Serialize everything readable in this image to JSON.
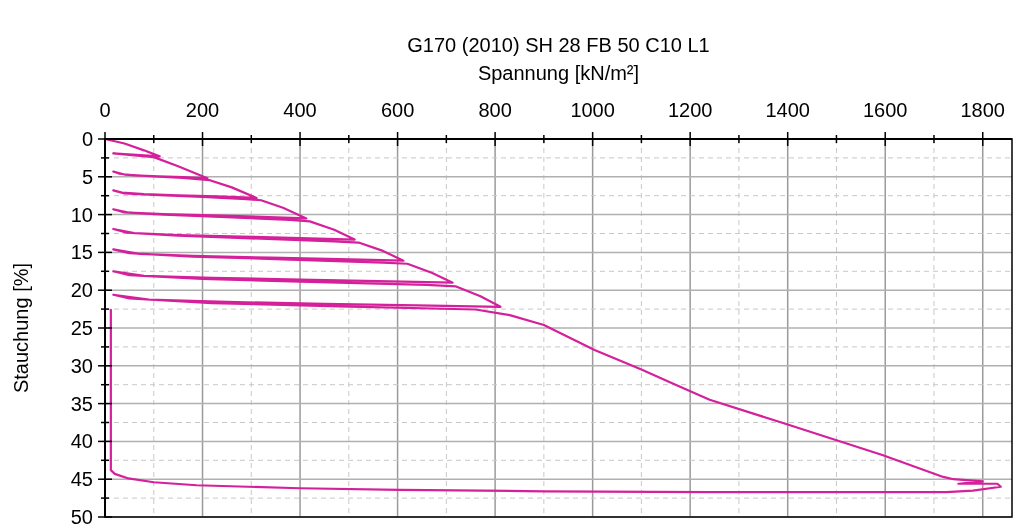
{
  "chart_data": {
    "type": "line",
    "title": "G170 (2010) SH 28 FB 50 C10 L1",
    "xlabel": "Spannung [kN/m²]",
    "ylabel": "Stauchung [%]",
    "xlim": [
      0,
      1860
    ],
    "ylim": [
      50,
      0
    ],
    "xticks": [
      0,
      {
        "value": 100,
        "label": null
      },
      200,
      {
        "value": 300,
        "label": null
      },
      400,
      {
        "value": 500,
        "label": null
      },
      600,
      {
        "value": 700,
        "label": null
      },
      800,
      {
        "value": 900,
        "label": null
      },
      1000,
      {
        "value": 1100,
        "label": null
      },
      1200,
      {
        "value": 1300,
        "label": null
      },
      1400,
      {
        "value": 1500,
        "label": null
      },
      1600,
      {
        "value": 1700,
        "label": null
      },
      1800
    ],
    "yticks": [
      0,
      {
        "value": 2.5,
        "label": null
      },
      5,
      {
        "value": 7.5,
        "label": null
      },
      10,
      {
        "value": 12.5,
        "label": null
      },
      15,
      {
        "value": 17.5,
        "label": null
      },
      20,
      {
        "value": 22.5,
        "label": null
      },
      25,
      {
        "value": 27.5,
        "label": null
      },
      30,
      {
        "value": 32.5,
        "label": null
      },
      35,
      {
        "value": 37.5,
        "label": null
      },
      40,
      {
        "value": 42.5,
        "label": null
      },
      45,
      {
        "value": 47.5,
        "label": null
      },
      50
    ],
    "grid": true,
    "line_style": "solid",
    "marker": "none",
    "series": [
      {
        "color": "#d4209a",
        "x": [
          0,
          40,
          80,
          112,
          80,
          40,
          17,
          50,
          100,
          150,
          210,
          160,
          110,
          60,
          30,
          17,
          40,
          100,
          160,
          215,
          260,
          311,
          230,
          150,
          80,
          35,
          17,
          40,
          100,
          200,
          290,
          320,
          365,
          413,
          320,
          220,
          120,
          50,
          17,
          40,
          120,
          250,
          380,
          420,
          470,
          512,
          400,
          280,
          150,
          60,
          17,
          45,
          150,
          300,
          470,
          520,
          570,
          612,
          480,
          340,
          180,
          70,
          17,
          50,
          180,
          380,
          570,
          620,
          670,
          713,
          560,
          400,
          220,
          80,
          17,
          50,
          200,
          420,
          660,
          720,
          770,
          811,
          640,
          450,
          250,
          90,
          17,
          50,
          220,
          480,
          760,
          830,
          900,
          1004,
          1100,
          1170,
          1240,
          1392,
          1594,
          1719,
          1740,
          1800,
          1750,
          1830,
          1837,
          1780,
          1725,
          1240,
          900,
          604,
          400,
          188,
          100,
          48,
          20,
          12,
          12,
          12
        ],
        "values": [
          0,
          0.6,
          1.5,
          2.3,
          2.15,
          2.0,
          1.9,
          2.1,
          2.4,
          3.6,
          5.2,
          5.05,
          4.95,
          4.8,
          4.6,
          4.3,
          4.7,
          4.95,
          5.15,
          5.45,
          6.4,
          7.8,
          7.6,
          7.45,
          7.3,
          7.1,
          6.8,
          7.2,
          7.4,
          7.65,
          7.95,
          8.1,
          9.1,
          10.5,
          10.3,
          10.1,
          9.95,
          9.75,
          9.3,
          9.7,
          10.0,
          10.35,
          10.7,
          10.9,
          12.0,
          13.3,
          13.1,
          12.9,
          12.7,
          12.45,
          11.9,
          12.4,
          12.8,
          13.15,
          13.55,
          13.7,
          14.8,
          16.1,
          15.9,
          15.7,
          15.45,
          15.2,
          14.6,
          15.1,
          15.55,
          15.95,
          16.35,
          16.5,
          17.7,
          19.0,
          18.8,
          18.6,
          18.35,
          18.1,
          17.5,
          18.0,
          18.5,
          18.9,
          19.3,
          19.5,
          20.8,
          22.2,
          22.0,
          21.8,
          21.55,
          21.25,
          20.6,
          21.1,
          21.7,
          22.15,
          22.55,
          23.3,
          24.6,
          27.9,
          30.5,
          32.5,
          34.5,
          37.6,
          41.8,
          44.7,
          45.0,
          45.3,
          45.6,
          45.6,
          46.0,
          46.5,
          46.7,
          46.7,
          46.6,
          46.4,
          46.2,
          45.8,
          45.4,
          44.9,
          44.3,
          43.8,
          30,
          22.6
        ]
      }
    ]
  }
}
